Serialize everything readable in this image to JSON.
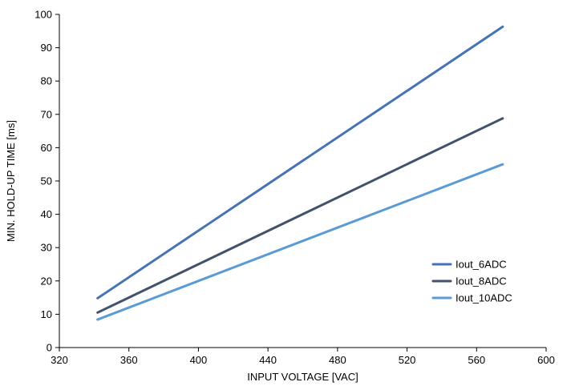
{
  "chart_data": {
    "type": "line",
    "xlabel": "INPUT VOLTAGE [VAC]",
    "ylabel": "MIN. HOLD-UP TIME [ms]",
    "xlim": [
      320,
      600
    ],
    "ylim": [
      0,
      100
    ],
    "xticks": [
      "320",
      "360",
      "400",
      "440",
      "480",
      "520",
      "560",
      "600"
    ],
    "yticks": [
      "0",
      "10",
      "20",
      "30",
      "40",
      "50",
      "60",
      "70",
      "80",
      "90",
      "100"
    ],
    "grid": false,
    "legend_position": "bottom-right",
    "series": [
      {
        "name": "Iout_6ADC",
        "color": "#4573b5",
        "x": [
          342,
          575
        ],
        "y": [
          14.8,
          96.3
        ]
      },
      {
        "name": "Iout_8ADC",
        "color": "#42526b",
        "x": [
          342,
          575
        ],
        "y": [
          10.5,
          68.8
        ]
      },
      {
        "name": "Iout_10ADC",
        "color": "#5b9bd5",
        "x": [
          342,
          575
        ],
        "y": [
          8.4,
          55.0
        ]
      }
    ]
  }
}
